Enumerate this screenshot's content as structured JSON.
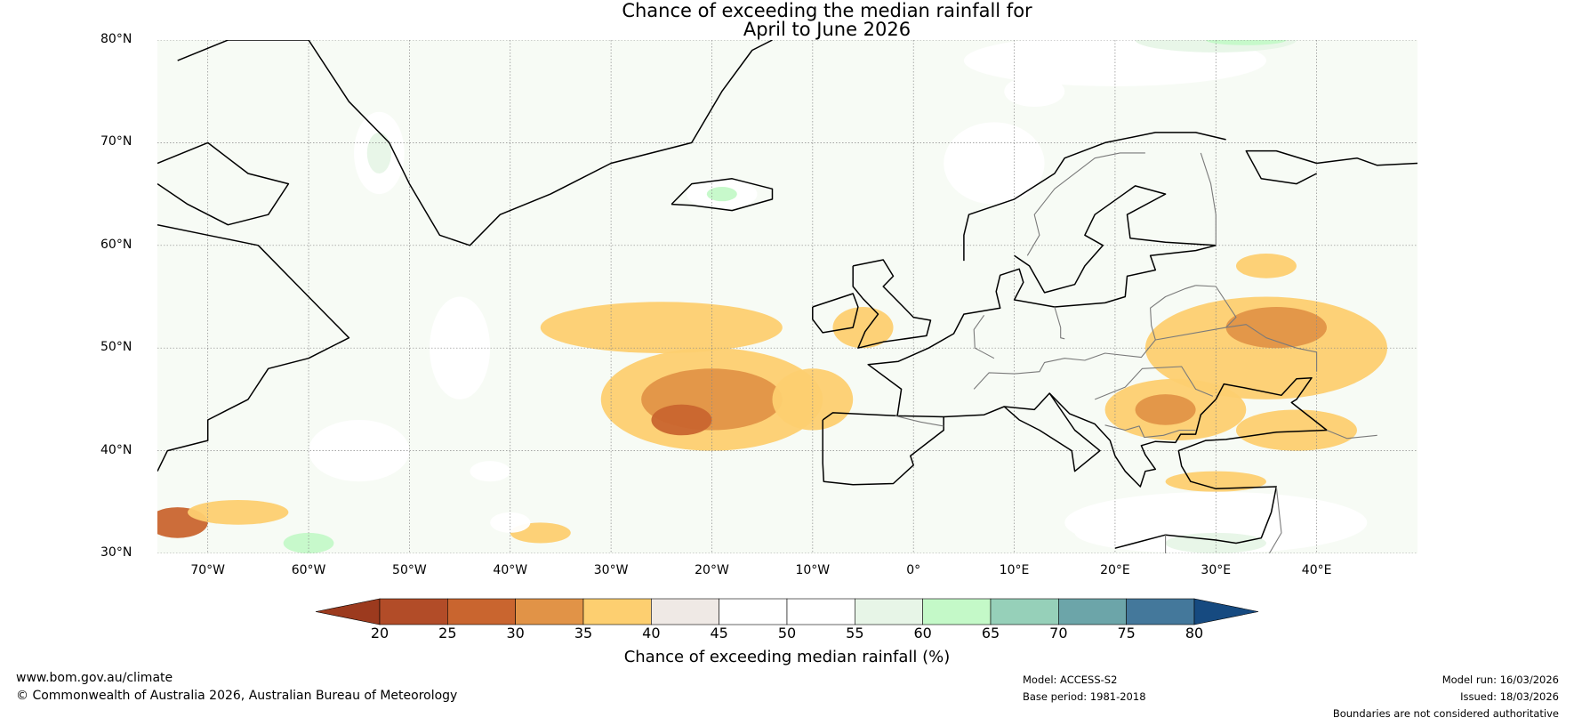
{
  "title": {
    "line1": "Chance of exceeding the median rainfall for",
    "line2": "April to June 2026"
  },
  "map": {
    "lat_range": [
      30,
      80
    ],
    "lon_range": [
      -75,
      50
    ],
    "lat_labels": [
      {
        "value": 80,
        "text": "80°N"
      },
      {
        "value": 70,
        "text": "70°N"
      },
      {
        "value": 60,
        "text": "60°N"
      },
      {
        "value": 50,
        "text": "50°N"
      },
      {
        "value": 40,
        "text": "40°N"
      },
      {
        "value": 30,
        "text": "30°N"
      }
    ],
    "lon_labels": [
      {
        "value": -70,
        "text": "70°W"
      },
      {
        "value": -60,
        "text": "60°W"
      },
      {
        "value": -50,
        "text": "50°W"
      },
      {
        "value": -40,
        "text": "40°W"
      },
      {
        "value": -30,
        "text": "30°W"
      },
      {
        "value": -20,
        "text": "20°W"
      },
      {
        "value": -10,
        "text": "10°W"
      },
      {
        "value": 0,
        "text": "0°"
      },
      {
        "value": 10,
        "text": "10°E"
      },
      {
        "value": 20,
        "text": "20°E"
      },
      {
        "value": 30,
        "text": "30°E"
      },
      {
        "value": 40,
        "text": "40°E"
      }
    ],
    "regions": [
      {
        "cls": 4,
        "lon": -20,
        "lat": 45,
        "rx": 11,
        "ry": 5
      },
      {
        "cls": 3,
        "lon": -20,
        "lat": 45,
        "rx": 7,
        "ry": 3
      },
      {
        "cls": 2,
        "lon": -23,
        "lat": 43,
        "rx": 3,
        "ry": 1.5
      },
      {
        "cls": 4,
        "lon": -25,
        "lat": 52,
        "rx": 12,
        "ry": 2.5
      },
      {
        "cls": 4,
        "lon": -10,
        "lat": 45,
        "rx": 4,
        "ry": 3
      },
      {
        "cls": 4,
        "lon": 35,
        "lat": 50,
        "rx": 12,
        "ry": 5
      },
      {
        "cls": 3,
        "lon": 36,
        "lat": 52,
        "rx": 5,
        "ry": 2
      },
      {
        "cls": 4,
        "lon": 26,
        "lat": 44,
        "rx": 7,
        "ry": 3
      },
      {
        "cls": 3,
        "lon": 25,
        "lat": 44,
        "rx": 3,
        "ry": 1.5
      },
      {
        "cls": 4,
        "lon": 38,
        "lat": 42,
        "rx": 6,
        "ry": 2
      },
      {
        "cls": 4,
        "lon": -5,
        "lat": 52,
        "rx": 3,
        "ry": 2
      },
      {
        "cls": 4,
        "lon": 35,
        "lat": 58,
        "rx": 3,
        "ry": 1.2
      },
      {
        "cls": 2,
        "lon": -73,
        "lat": 33,
        "rx": 3,
        "ry": 1.5
      },
      {
        "cls": 4,
        "lon": -67,
        "lat": 34,
        "rx": 5,
        "ry": 1.2
      },
      {
        "cls": 4,
        "lon": -37,
        "lat": 32,
        "rx": 3,
        "ry": 1
      },
      {
        "cls": 4,
        "lon": 30,
        "lat": 37,
        "rx": 5,
        "ry": 1
      },
      {
        "cls": 6,
        "lon": 30,
        "lat": 33,
        "rx": 15,
        "ry": 3
      },
      {
        "cls": 7,
        "lon": 28,
        "lat": 32,
        "rx": 12,
        "ry": 2
      },
      {
        "cls": 8,
        "lon": 30,
        "lat": 31,
        "rx": 5,
        "ry": 1
      },
      {
        "cls": 6,
        "lon": 20,
        "lat": 78,
        "rx": 15,
        "ry": 2.5
      },
      {
        "cls": 8,
        "lon": 30,
        "lat": 80,
        "rx": 8,
        "ry": 1.2
      },
      {
        "cls": 9,
        "lon": 33,
        "lat": 80,
        "rx": 4,
        "ry": 0.5
      },
      {
        "cls": 7,
        "lon": 12,
        "lat": 75,
        "rx": 3,
        "ry": 1.5
      },
      {
        "cls": 6,
        "lon": 8,
        "lat": 68,
        "rx": 5,
        "ry": 4
      },
      {
        "cls": 7,
        "lon": -53,
        "lat": 69,
        "rx": 2.5,
        "ry": 4
      },
      {
        "cls": 8,
        "lon": -53,
        "lat": 69,
        "rx": 1.2,
        "ry": 2
      },
      {
        "cls": 7,
        "lon": -19,
        "lat": 65,
        "rx": 3.5,
        "ry": 1.5
      },
      {
        "cls": 9,
        "lon": -19,
        "lat": 65,
        "rx": 1.5,
        "ry": 0.7
      },
      {
        "cls": 9,
        "lon": -60,
        "lat": 31,
        "rx": 2.5,
        "ry": 1
      },
      {
        "cls": 7,
        "lon": -42,
        "lat": 38,
        "rx": 2,
        "ry": 1
      },
      {
        "cls": 7,
        "lon": -40,
        "lat": 33,
        "rx": 2,
        "ry": 1
      },
      {
        "cls": 6,
        "lon": -45,
        "lat": 50,
        "rx": 3,
        "ry": 5
      },
      {
        "cls": 6,
        "lon": -55,
        "lat": 40,
        "rx": 5,
        "ry": 3
      }
    ],
    "coastlines": [
      [
        [
          -73,
          78
        ],
        [
          -68,
          80
        ],
        [
          -60,
          80
        ],
        [
          -56,
          74
        ],
        [
          -52,
          70
        ],
        [
          -50,
          66
        ],
        [
          -47,
          61
        ],
        [
          -44,
          60
        ],
        [
          -41,
          63
        ],
        [
          -36,
          65
        ],
        [
          -30,
          68
        ],
        [
          -22,
          70
        ],
        [
          -19,
          75
        ],
        [
          -16,
          79
        ],
        [
          -14,
          80
        ]
      ],
      [
        [
          -75,
          68
        ],
        [
          -70,
          70
        ],
        [
          -66,
          67
        ],
        [
          -62,
          66
        ],
        [
          -64,
          63
        ],
        [
          -68,
          62
        ],
        [
          -72,
          64
        ],
        [
          -75,
          66
        ]
      ],
      [
        [
          -75,
          62
        ],
        [
          -70,
          61
        ],
        [
          -65,
          60
        ],
        [
          -61,
          56
        ],
        [
          -58,
          53
        ],
        [
          -56,
          51
        ],
        [
          -60,
          49
        ],
        [
          -64,
          48
        ],
        [
          -66,
          45
        ],
        [
          -70,
          43
        ],
        [
          -70,
          41
        ],
        [
          -74,
          40
        ],
        [
          -75,
          38
        ]
      ],
      [
        [
          -24,
          64
        ],
        [
          -22,
          66
        ],
        [
          -18,
          66.5
        ],
        [
          -14,
          65.5
        ],
        [
          -14,
          64.5
        ],
        [
          -18,
          63.4
        ],
        [
          -22,
          63.9
        ],
        [
          -24,
          64
        ]
      ],
      [
        [
          -6,
          58
        ],
        [
          -3,
          58.6
        ],
        [
          -2,
          57
        ],
        [
          -3,
          56
        ],
        [
          -1,
          54
        ],
        [
          0,
          53
        ],
        [
          1.7,
          52.7
        ],
        [
          1.3,
          51.2
        ],
        [
          -3,
          50.6
        ],
        [
          -5.5,
          50
        ],
        [
          -4.8,
          51.6
        ],
        [
          -3.5,
          53.3
        ],
        [
          -5,
          54.8
        ],
        [
          -6,
          56
        ],
        [
          -6,
          58
        ]
      ],
      [
        [
          -10,
          54
        ],
        [
          -6,
          55.3
        ],
        [
          -5.5,
          54
        ],
        [
          -6,
          52
        ],
        [
          -9,
          51.5
        ],
        [
          -10,
          52.8
        ],
        [
          -10,
          54
        ]
      ],
      [
        [
          -9,
          43
        ],
        [
          -9,
          38.8
        ],
        [
          -8.9,
          37
        ],
        [
          -6,
          36.7
        ],
        [
          -2,
          36.8
        ],
        [
          0,
          38.6
        ],
        [
          -0.3,
          39.5
        ],
        [
          3,
          42
        ],
        [
          3,
          43.3
        ],
        [
          -1.6,
          43.4
        ],
        [
          -8,
          43.7
        ],
        [
          -9,
          43
        ]
      ],
      [
        [
          3,
          43.3
        ],
        [
          7,
          43.5
        ],
        [
          9,
          44.3
        ],
        [
          12,
          44
        ],
        [
          13.5,
          45.6
        ],
        [
          16,
          42
        ],
        [
          18.5,
          40
        ],
        [
          16,
          38
        ],
        [
          15.7,
          40
        ],
        [
          12.5,
          42
        ],
        [
          10.5,
          43
        ],
        [
          9,
          44.3
        ]
      ],
      [
        [
          -1.6,
          43.4
        ],
        [
          -1.2,
          46
        ],
        [
          -4.5,
          48.4
        ],
        [
          -1.5,
          48.7
        ],
        [
          1.5,
          50
        ],
        [
          4,
          51.4
        ],
        [
          5,
          53.3
        ],
        [
          8.6,
          53.9
        ],
        [
          8.2,
          55.5
        ],
        [
          8.6,
          57.1
        ],
        [
          10.5,
          57.7
        ],
        [
          10.9,
          56.4
        ],
        [
          10,
          54.7
        ],
        [
          14,
          54
        ],
        [
          19,
          54.4
        ],
        [
          21,
          55
        ],
        [
          21.2,
          57
        ],
        [
          24,
          57.6
        ],
        [
          23.5,
          59
        ],
        [
          28,
          59.5
        ],
        [
          30,
          60
        ]
      ],
      [
        [
          5,
          58.5
        ],
        [
          5,
          61
        ],
        [
          5.5,
          63
        ],
        [
          10,
          64.5
        ],
        [
          14,
          67
        ],
        [
          15,
          68.5
        ],
        [
          19,
          70
        ],
        [
          24,
          71
        ],
        [
          28,
          71
        ],
        [
          31,
          70.3
        ]
      ],
      [
        [
          30,
          60
        ],
        [
          25,
          60.3
        ],
        [
          21.5,
          60.7
        ],
        [
          21.2,
          63
        ],
        [
          25,
          65
        ],
        [
          22,
          65.8
        ],
        [
          18,
          63
        ],
        [
          17,
          61
        ],
        [
          18.8,
          60
        ],
        [
          17,
          58
        ],
        [
          16,
          56.2
        ],
        [
          13,
          55.4
        ],
        [
          11.5,
          58
        ],
        [
          10,
          59
        ]
      ],
      [
        [
          13.5,
          45.6
        ],
        [
          15.5,
          43.6
        ],
        [
          18,
          42.6
        ],
        [
          19.5,
          41
        ],
        [
          20,
          39.5
        ],
        [
          21,
          38
        ],
        [
          22.5,
          36.5
        ],
        [
          23,
          38
        ],
        [
          24,
          38.2
        ],
        [
          23,
          39.6
        ],
        [
          22.6,
          40.5
        ],
        [
          24,
          40.9
        ],
        [
          26,
          40.8
        ],
        [
          26.5,
          41.6
        ],
        [
          28,
          41.6
        ],
        [
          28.5,
          43.5
        ],
        [
          30,
          45
        ],
        [
          30.8,
          46.5
        ],
        [
          33,
          46.1
        ],
        [
          36.5,
          45.4
        ],
        [
          38,
          47
        ],
        [
          39.5,
          47.1
        ],
        [
          38,
          45
        ],
        [
          37.5,
          44.7
        ],
        [
          41,
          42
        ],
        [
          36,
          41.8
        ],
        [
          31,
          41.1
        ],
        [
          29,
          41
        ],
        [
          26.3,
          40
        ],
        [
          26.6,
          38.5
        ],
        [
          27.5,
          37
        ],
        [
          30,
          36.3
        ],
        [
          36,
          36.5
        ],
        [
          35.5,
          34
        ],
        [
          34.5,
          31.5
        ],
        [
          32,
          31
        ],
        [
          30,
          31.3
        ],
        [
          25,
          31.8
        ],
        [
          20,
          30.5
        ]
      ],
      [
        [
          40,
          67
        ],
        [
          38,
          66
        ],
        [
          34.5,
          66.5
        ],
        [
          33,
          69.2
        ],
        [
          36,
          69.2
        ],
        [
          40,
          68
        ],
        [
          44,
          68.5
        ],
        [
          46,
          67.8
        ],
        [
          50,
          68
        ]
      ]
    ],
    "borders": [
      [
        [
          -1.8,
          43.4
        ],
        [
          0.7,
          42.8
        ],
        [
          3,
          42.4
        ]
      ],
      [
        [
          6,
          46
        ],
        [
          7.5,
          47.6
        ],
        [
          10,
          47.5
        ],
        [
          12.5,
          47.7
        ],
        [
          13,
          48.6
        ],
        [
          15,
          49
        ],
        [
          17,
          48.8
        ],
        [
          19,
          49.5
        ],
        [
          22.6,
          49.1
        ],
        [
          24,
          50.8
        ],
        [
          23.6,
          52.2
        ],
        [
          23.5,
          53.9
        ],
        [
          25,
          55
        ],
        [
          27,
          55.8
        ],
        [
          28,
          56.1
        ]
      ],
      [
        [
          8,
          49
        ],
        [
          6.1,
          50
        ],
        [
          6,
          51.8
        ],
        [
          7,
          53.2
        ]
      ],
      [
        [
          14,
          54
        ],
        [
          14.6,
          52
        ],
        [
          14.6,
          51
        ],
        [
          15,
          50.9
        ]
      ],
      [
        [
          18,
          45
        ],
        [
          21,
          46.2
        ],
        [
          22.7,
          48
        ],
        [
          26.6,
          48.2
        ],
        [
          28,
          46
        ],
        [
          29.7,
          45.3
        ]
      ],
      [
        [
          19,
          42.5
        ],
        [
          21,
          42
        ],
        [
          22.4,
          42.4
        ],
        [
          22.9,
          41.3
        ],
        [
          24.8,
          41.5
        ],
        [
          26.4,
          42
        ],
        [
          28,
          42
        ]
      ],
      [
        [
          24,
          50.8
        ],
        [
          31,
          52
        ],
        [
          33,
          52.3
        ],
        [
          35,
          51
        ],
        [
          38,
          50
        ],
        [
          40,
          49.6
        ],
        [
          40,
          47.7
        ]
      ],
      [
        [
          28,
          56.1
        ],
        [
          30,
          56
        ],
        [
          32,
          53
        ],
        [
          31,
          52
        ]
      ],
      [
        [
          30,
          60
        ],
        [
          30,
          63
        ],
        [
          29.5,
          66
        ],
        [
          28.5,
          69
        ]
      ],
      [
        [
          23,
          69
        ],
        [
          20.5,
          69
        ],
        [
          18,
          68.5
        ],
        [
          14,
          65.5
        ],
        [
          12,
          63
        ],
        [
          12.5,
          61
        ],
        [
          11.3,
          59
        ]
      ],
      [
        [
          36,
          36.5
        ],
        [
          36.5,
          32
        ],
        [
          35,
          29.5
        ]
      ],
      [
        [
          25,
          31.8
        ],
        [
          25,
          30
        ]
      ],
      [
        [
          41,
          42
        ],
        [
          43,
          41.2
        ],
        [
          46,
          41.5
        ]
      ]
    ]
  },
  "colorbar": {
    "label": "Chance of exceeding median rainfall (%)",
    "ticks": [
      "20",
      "25",
      "30",
      "35",
      "40",
      "45",
      "50",
      "55",
      "60",
      "65",
      "70",
      "75",
      "80"
    ],
    "colors": [
      "#9c3a1e",
      "#b24c28",
      "#c9652f",
      "#e19347",
      "#fdcf70",
      "#efe9e5",
      "#ffffff",
      "#ffffff",
      "#e7f5e7",
      "#c4f9c8",
      "#96d0b9",
      "#6ca5a9",
      "#44789b",
      "#164a80"
    ]
  },
  "footer": {
    "url": "www.bom.gov.au/climate",
    "copyright": "© Commonwealth of Australia 2026, Australian Bureau of Meteorology",
    "model": "Model: ACCESS-S2",
    "base_period": "Base period: 1981-2018",
    "model_run": "Model run: 16/03/2026",
    "issued": "Issued: 18/03/2026",
    "boundaries": "Boundaries are not considered authoritative"
  }
}
